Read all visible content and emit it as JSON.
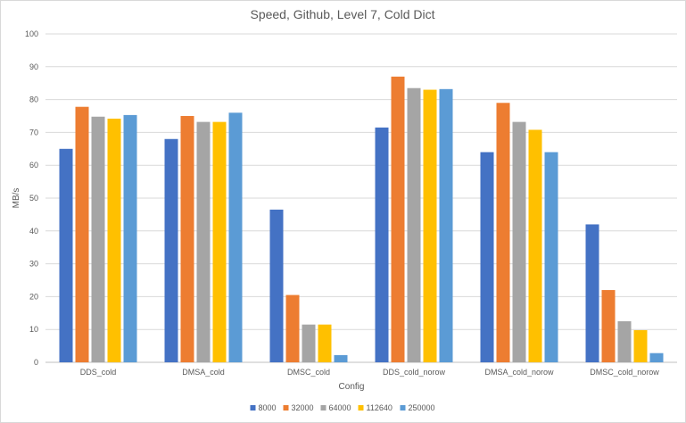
{
  "chart_data": {
    "type": "bar",
    "title": "Speed, Github, Level 7, Cold Dict",
    "xlabel": "Config",
    "ylabel": "MB/s",
    "ylim": [
      0,
      100
    ],
    "yticks": [
      0,
      10,
      20,
      30,
      40,
      50,
      60,
      70,
      80,
      90,
      100
    ],
    "grid": true,
    "legend_position": "bottom",
    "categories": [
      "DDS_cold",
      "DMSA_cold",
      "DMSC_cold",
      "DDS_cold_norow",
      "DMSA_cold_norow",
      "DMSC_cold_norow"
    ],
    "series": [
      {
        "name": "8000",
        "color": "#4472C4",
        "values": [
          65.0,
          68.0,
          46.5,
          71.5,
          64.0,
          42.0
        ]
      },
      {
        "name": "32000",
        "color": "#ED7D31",
        "values": [
          77.8,
          75.0,
          20.5,
          87.0,
          79.0,
          22.0
        ]
      },
      {
        "name": "64000",
        "color": "#A5A5A5",
        "values": [
          74.8,
          73.2,
          11.5,
          83.5,
          73.2,
          12.5
        ]
      },
      {
        "name": "112640",
        "color": "#FFC000",
        "values": [
          74.2,
          73.2,
          11.5,
          83.0,
          70.8,
          9.8
        ]
      },
      {
        "name": "250000",
        "color": "#5B9BD5",
        "values": [
          75.3,
          76.0,
          2.2,
          83.2,
          64.0,
          2.8
        ]
      }
    ]
  }
}
